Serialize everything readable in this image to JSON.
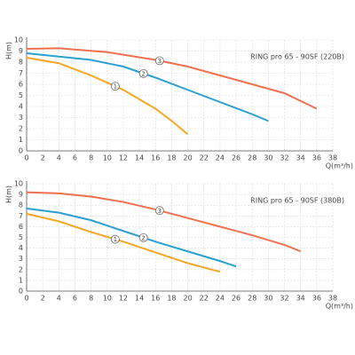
{
  "chart_data": [
    {
      "type": "line",
      "title": "RING pro 65 - 90SF (220В)",
      "x_label": "Q(m³/h)",
      "y_label": "H(m)",
      "xlim": [
        0,
        38
      ],
      "xticks": [
        0,
        2,
        4,
        6,
        8,
        10,
        12,
        14,
        16,
        18,
        20,
        22,
        24,
        26,
        28,
        30,
        32,
        34,
        36,
        38
      ],
      "ylim": [
        0,
        10
      ],
      "yticks": [
        0,
        1,
        2,
        3,
        4,
        5,
        6,
        7,
        8,
        9,
        10
      ],
      "grid": true,
      "series": [
        {
          "name": "1",
          "color": "#f5a623",
          "x": [
            0,
            4,
            8,
            12,
            16,
            18,
            20
          ],
          "values": [
            8.4,
            7.9,
            6.8,
            5.5,
            3.8,
            2.7,
            1.5
          ]
        },
        {
          "name": "2",
          "color": "#2a9fd0",
          "x": [
            0,
            4,
            8,
            12,
            16,
            20,
            24,
            28,
            30
          ],
          "values": [
            8.8,
            8.5,
            8.2,
            7.6,
            6.6,
            5.5,
            4.4,
            3.3,
            2.7
          ]
        },
        {
          "name": "3",
          "color": "#f07050",
          "x": [
            0,
            4,
            10,
            16,
            20,
            24,
            28,
            32,
            36
          ],
          "values": [
            9.2,
            9.25,
            8.9,
            8.2,
            7.6,
            6.8,
            6.0,
            5.2,
            3.8
          ]
        }
      ]
    },
    {
      "type": "line",
      "title": "RING pro 65 - 90SF (380В)",
      "x_label": "Q(m³/h)",
      "y_label": "H(m)",
      "xlim": [
        0,
        38
      ],
      "xticks": [
        0,
        2,
        4,
        6,
        8,
        10,
        12,
        14,
        16,
        18,
        20,
        22,
        24,
        26,
        28,
        30,
        32,
        34,
        36,
        38
      ],
      "ylim": [
        0,
        10
      ],
      "yticks": [
        0,
        1,
        2,
        3,
        4,
        5,
        6,
        7,
        8,
        9,
        10
      ],
      "grid": true,
      "series": [
        {
          "name": "1",
          "color": "#f5a623",
          "x": [
            0,
            4,
            8,
            12,
            16,
            20,
            24
          ],
          "values": [
            7.2,
            6.5,
            5.5,
            4.6,
            3.6,
            2.6,
            1.8
          ]
        },
        {
          "name": "2",
          "color": "#2a9fd0",
          "x": [
            0,
            4,
            8,
            12,
            16,
            20,
            24,
            26
          ],
          "values": [
            7.7,
            7.3,
            6.6,
            5.6,
            4.6,
            3.7,
            2.8,
            2.3
          ]
        },
        {
          "name": "3",
          "color": "#f07050",
          "x": [
            0,
            4,
            8,
            12,
            16,
            20,
            24,
            28,
            32,
            34
          ],
          "values": [
            9.2,
            9.1,
            8.8,
            8.3,
            7.6,
            6.8,
            6.0,
            5.2,
            4.3,
            3.7
          ]
        }
      ]
    }
  ]
}
